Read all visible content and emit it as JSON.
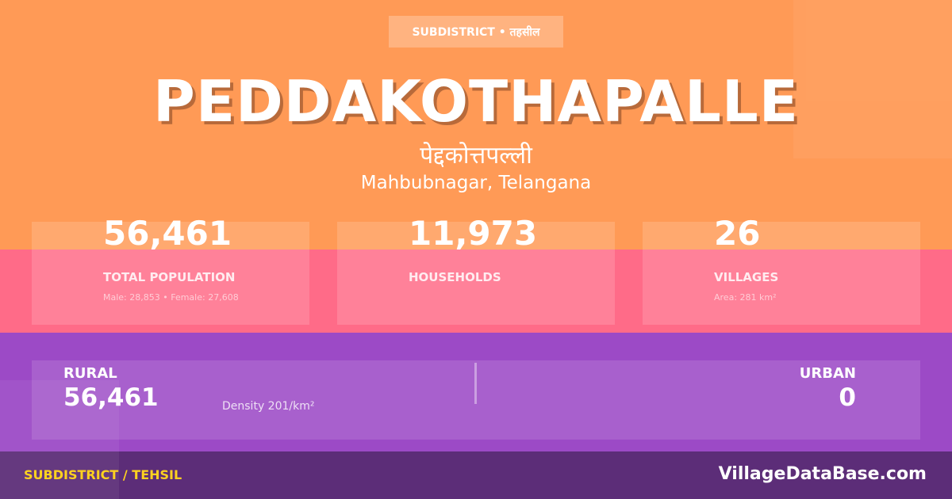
{
  "badge": "SUBDISTRICT • तहसील",
  "title": "PEDDAKOTHAPALLE",
  "title_hindi": "पेद्दकोत्तपल्ली",
  "location": "Mahbubnagar, Telangana",
  "stats": [
    {
      "value": "56,461",
      "label": "TOTAL POPULATION",
      "sub": "Male: 28,853 • Female: 27,608"
    },
    {
      "value": "11,973",
      "label": "HOUSEHOLDS",
      "sub": ""
    },
    {
      "value": "26",
      "label": "VILLAGES",
      "sub": "Area: 281 km²"
    }
  ],
  "rural": {
    "label": "RURAL",
    "value": "56,461"
  },
  "density": "Density 201/km²",
  "urban": {
    "label": "URBAN",
    "value": "0"
  },
  "footer": {
    "left": "SUBDISTRICT / TEHSIL",
    "right": "VillageDataBase.com"
  },
  "colors": {
    "orange": "#ff9a56",
    "pink": "#ff6b88",
    "purple": "#9c4ac6",
    "footer": "#5c2d78",
    "accent": "#ffd21f"
  }
}
